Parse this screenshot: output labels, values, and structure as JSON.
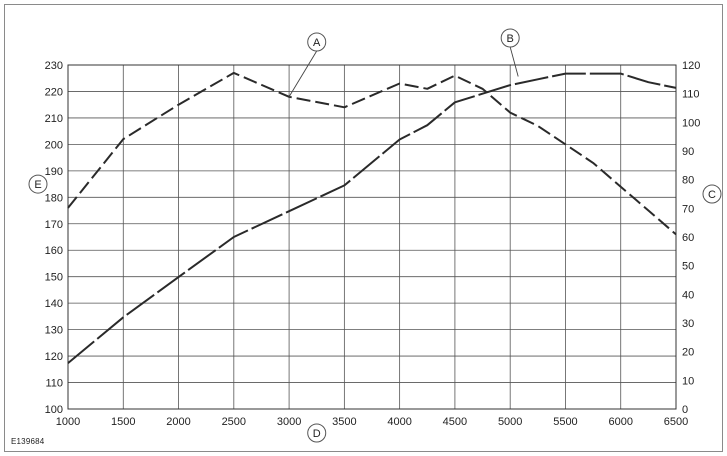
{
  "figure_id": "E139684",
  "chart_data": {
    "type": "line",
    "x_ticks": [
      1000,
      1500,
      2000,
      2500,
      3000,
      3500,
      4000,
      4500,
      5000,
      5500,
      6000,
      6500
    ],
    "xlim": [
      1000,
      6500
    ],
    "left_axis": {
      "ylim": [
        100,
        230
      ],
      "ticks": [
        100,
        110,
        120,
        130,
        140,
        150,
        160,
        170,
        180,
        190,
        200,
        210,
        220,
        230
      ]
    },
    "right_axis": {
      "ylim": [
        0,
        120
      ],
      "ticks": [
        0,
        10,
        20,
        30,
        40,
        50,
        60,
        70,
        80,
        90,
        100,
        110,
        120
      ]
    },
    "grid": true,
    "series": [
      {
        "id": "A",
        "axis": "left",
        "style": "dashed",
        "x": [
          1000,
          1500,
          2000,
          2500,
          3000,
          3500,
          4000,
          4250,
          4500,
          4750,
          5000,
          5250,
          5500,
          5750,
          6000,
          6250,
          6500
        ],
        "values": [
          176,
          202,
          215,
          227,
          218,
          214,
          223,
          221,
          226,
          221,
          212,
          207,
          200,
          193,
          184,
          175,
          166
        ]
      },
      {
        "id": "B",
        "axis": "right",
        "style": "long-dash",
        "x": [
          1000,
          1500,
          2000,
          2500,
          3000,
          3500,
          4000,
          4250,
          4500,
          5000,
          5250,
          5500,
          6000,
          6250,
          6500
        ],
        "values": [
          16,
          32,
          46,
          60,
          69,
          78,
          94,
          99,
          107,
          113,
          115,
          117,
          117,
          114,
          112
        ]
      }
    ],
    "callouts": [
      {
        "letter": "A",
        "target": "series-A"
      },
      {
        "letter": "B",
        "target": "series-B"
      },
      {
        "letter": "C",
        "target": "right-axis"
      },
      {
        "letter": "D",
        "target": "x-axis"
      },
      {
        "letter": "E",
        "target": "left-axis"
      }
    ]
  }
}
